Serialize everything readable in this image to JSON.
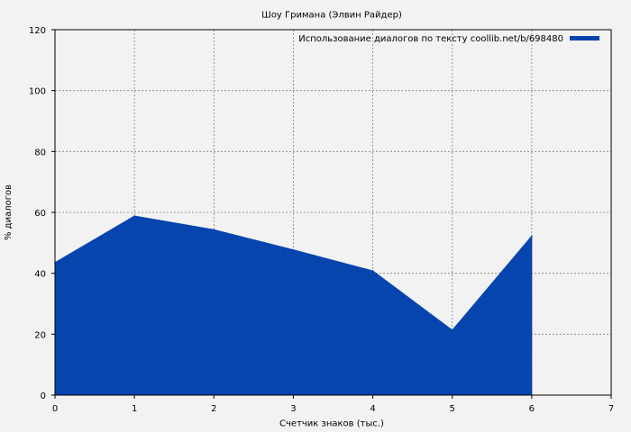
{
  "chart_data": {
    "type": "area",
    "title": "Шоу Гримана (Элвин Райдер)",
    "xlabel": "Счетчик знаков (тыс.)",
    "ylabel": "% диалогов",
    "xlim": [
      0,
      7
    ],
    "ylim": [
      0,
      120
    ],
    "xticks": [
      "0",
      "1",
      "2",
      "3",
      "4",
      "5",
      "6",
      "7"
    ],
    "yticks": [
      "0",
      "20",
      "40",
      "60",
      "80",
      "100",
      "120"
    ],
    "grid": true,
    "legend_position": "top-right",
    "series": [
      {
        "name": "Использование диалогов по тексту coollib.net/b/698480",
        "color": "#0645ad",
        "x": [
          0,
          1,
          2,
          3,
          4,
          5,
          6
        ],
        "y": [
          43.5,
          58.8,
          54.3,
          47.7,
          40.8,
          21.3,
          52.2
        ]
      }
    ]
  }
}
